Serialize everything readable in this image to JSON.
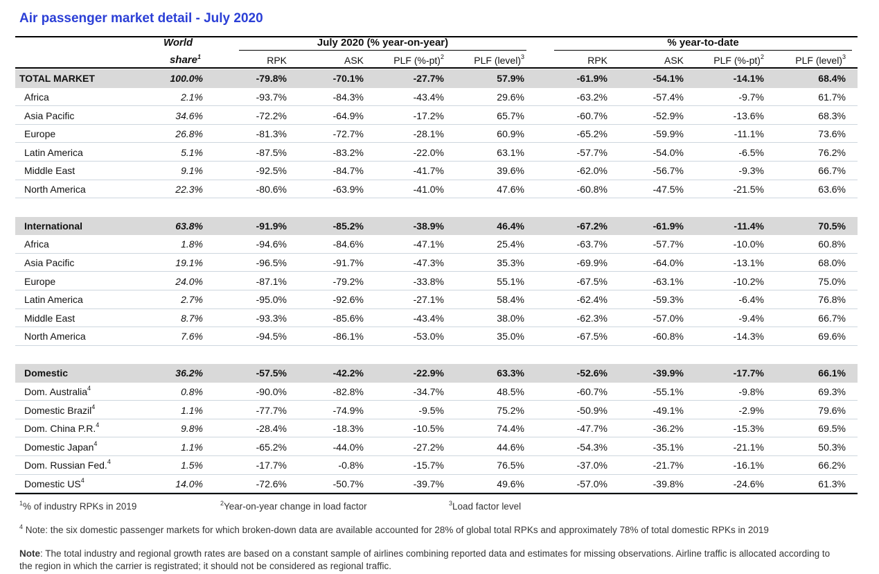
{
  "title": "Air passenger market detail - July 2020",
  "header": {
    "world": "World",
    "share": "share",
    "share_sup": "1",
    "groups": [
      {
        "title": "July 2020 (% year-on-year)",
        "columns": [
          {
            "text": "RPK"
          },
          {
            "text": "ASK"
          },
          {
            "text": "PLF (%-pt)",
            "sup": "2"
          },
          {
            "text": "PLF (level)",
            "sup": "3"
          }
        ]
      },
      {
        "title": "% year-to-date",
        "columns": [
          {
            "text": "RPK"
          },
          {
            "text": "ASK"
          },
          {
            "text": "PLF (%-pt)",
            "sup": "2"
          },
          {
            "text": "PLF (level)",
            "sup": "3"
          }
        ]
      }
    ]
  },
  "sections": [
    {
      "label": "TOTAL MARKET",
      "share": "100.0%",
      "values": [
        "-79.8%",
        "-70.1%",
        "-27.7%",
        "57.9%",
        "-61.9%",
        "-54.1%",
        "-14.1%",
        "68.4%"
      ],
      "rows": [
        {
          "label": "Africa",
          "share": "2.1%",
          "values": [
            "-93.7%",
            "-84.3%",
            "-43.4%",
            "29.6%",
            "-63.2%",
            "-57.4%",
            "-9.7%",
            "61.7%"
          ]
        },
        {
          "label": "Asia Pacific",
          "share": "34.6%",
          "values": [
            "-72.2%",
            "-64.9%",
            "-17.2%",
            "65.7%",
            "-60.7%",
            "-52.9%",
            "-13.6%",
            "68.3%"
          ]
        },
        {
          "label": "Europe",
          "share": "26.8%",
          "values": [
            "-81.3%",
            "-72.7%",
            "-28.1%",
            "60.9%",
            "-65.2%",
            "-59.9%",
            "-11.1%",
            "73.6%"
          ]
        },
        {
          "label": "Latin America",
          "share": "5.1%",
          "values": [
            "-87.5%",
            "-83.2%",
            "-22.0%",
            "63.1%",
            "-57.7%",
            "-54.0%",
            "-6.5%",
            "76.2%"
          ]
        },
        {
          "label": "Middle East",
          "share": "9.1%",
          "values": [
            "-92.5%",
            "-84.7%",
            "-41.7%",
            "39.6%",
            "-62.0%",
            "-56.7%",
            "-9.3%",
            "66.7%"
          ]
        },
        {
          "label": "North America",
          "share": "22.3%",
          "values": [
            "-80.6%",
            "-63.9%",
            "-41.0%",
            "47.6%",
            "-60.8%",
            "-47.5%",
            "-21.5%",
            "63.6%"
          ]
        }
      ]
    },
    {
      "label": "International",
      "share": "63.8%",
      "values": [
        "-91.9%",
        "-85.2%",
        "-38.9%",
        "46.4%",
        "-67.2%",
        "-61.9%",
        "-11.4%",
        "70.5%"
      ],
      "rows": [
        {
          "label": "Africa",
          "share": "1.8%",
          "values": [
            "-94.6%",
            "-84.6%",
            "-47.1%",
            "25.4%",
            "-63.7%",
            "-57.7%",
            "-10.0%",
            "60.8%"
          ]
        },
        {
          "label": "Asia Pacific",
          "share": "19.1%",
          "values": [
            "-96.5%",
            "-91.7%",
            "-47.3%",
            "35.3%",
            "-69.9%",
            "-64.0%",
            "-13.1%",
            "68.0%"
          ]
        },
        {
          "label": "Europe",
          "share": "24.0%",
          "values": [
            "-87.1%",
            "-79.2%",
            "-33.8%",
            "55.1%",
            "-67.5%",
            "-63.1%",
            "-10.2%",
            "75.0%"
          ]
        },
        {
          "label": "Latin America",
          "share": "2.7%",
          "values": [
            "-95.0%",
            "-92.6%",
            "-27.1%",
            "58.4%",
            "-62.4%",
            "-59.3%",
            "-6.4%",
            "76.8%"
          ]
        },
        {
          "label": "Middle East",
          "share": "8.7%",
          "values": [
            "-93.3%",
            "-85.6%",
            "-43.4%",
            "38.0%",
            "-62.3%",
            "-57.0%",
            "-9.4%",
            "66.7%"
          ]
        },
        {
          "label": "North America",
          "share": "7.6%",
          "values": [
            "-94.5%",
            "-86.1%",
            "-53.0%",
            "35.0%",
            "-67.5%",
            "-60.8%",
            "-14.3%",
            "69.6%"
          ]
        }
      ]
    },
    {
      "label": "Domestic",
      "share": "36.2%",
      "values": [
        "-57.5%",
        "-42.2%",
        "-22.9%",
        "63.3%",
        "-52.6%",
        "-39.9%",
        "-17.7%",
        "66.1%"
      ],
      "rows": [
        {
          "label": "Dom. Australia",
          "sup": "4",
          "share": "0.8%",
          "values": [
            "-90.0%",
            "-82.8%",
            "-34.7%",
            "48.5%",
            "-60.7%",
            "-55.1%",
            "-9.8%",
            "69.3%"
          ]
        },
        {
          "label": "Domestic Brazil",
          "sup": "4",
          "share": "1.1%",
          "values": [
            "-77.7%",
            "-74.9%",
            "-9.5%",
            "75.2%",
            "-50.9%",
            "-49.1%",
            "-2.9%",
            "79.6%"
          ]
        },
        {
          "label": "Dom. China P.R.",
          "sup": "4",
          "share": "9.8%",
          "values": [
            "-28.4%",
            "-18.3%",
            "-10.5%",
            "74.4%",
            "-47.7%",
            "-36.2%",
            "-15.3%",
            "69.5%"
          ]
        },
        {
          "label": "Domestic Japan",
          "sup": "4",
          "share": "1.1%",
          "values": [
            "-65.2%",
            "-44.0%",
            "-27.2%",
            "44.6%",
            "-54.3%",
            "-35.1%",
            "-21.1%",
            "50.3%"
          ]
        },
        {
          "label": "Dom. Russian Fed.",
          "sup": "4",
          "share": "1.5%",
          "values": [
            "-17.7%",
            "-0.8%",
            "-15.7%",
            "76.5%",
            "-37.0%",
            "-21.7%",
            "-16.1%",
            "66.2%"
          ]
        },
        {
          "label": "Domestic US",
          "sup": "4",
          "share": "14.0%",
          "values": [
            "-72.6%",
            "-50.7%",
            "-39.7%",
            "49.6%",
            "-57.0%",
            "-39.8%",
            "-24.6%",
            "61.3%"
          ]
        }
      ]
    }
  ],
  "footnotes": [
    {
      "sup": "1",
      "text": "% of industry RPKs in 2019"
    },
    {
      "sup": "2",
      "text": "Year-on-year change in load factor"
    },
    {
      "sup": "3",
      "text": "Load factor level"
    },
    {
      "sup": "4",
      "text": " Note: the six domestic passenger markets for which broken-down data are available accounted for 28% of global total RPKs and approximately 78% of total domestic RPKs in 2019"
    }
  ],
  "note": {
    "label": "Note",
    "text": ": The total industry and regional growth rates are based on a constant sample of airlines combining reported data and estimates for missing observations. Airline traffic is allocated according to the region in which the carrier is registrated; it should not be considered as regional traffic."
  }
}
